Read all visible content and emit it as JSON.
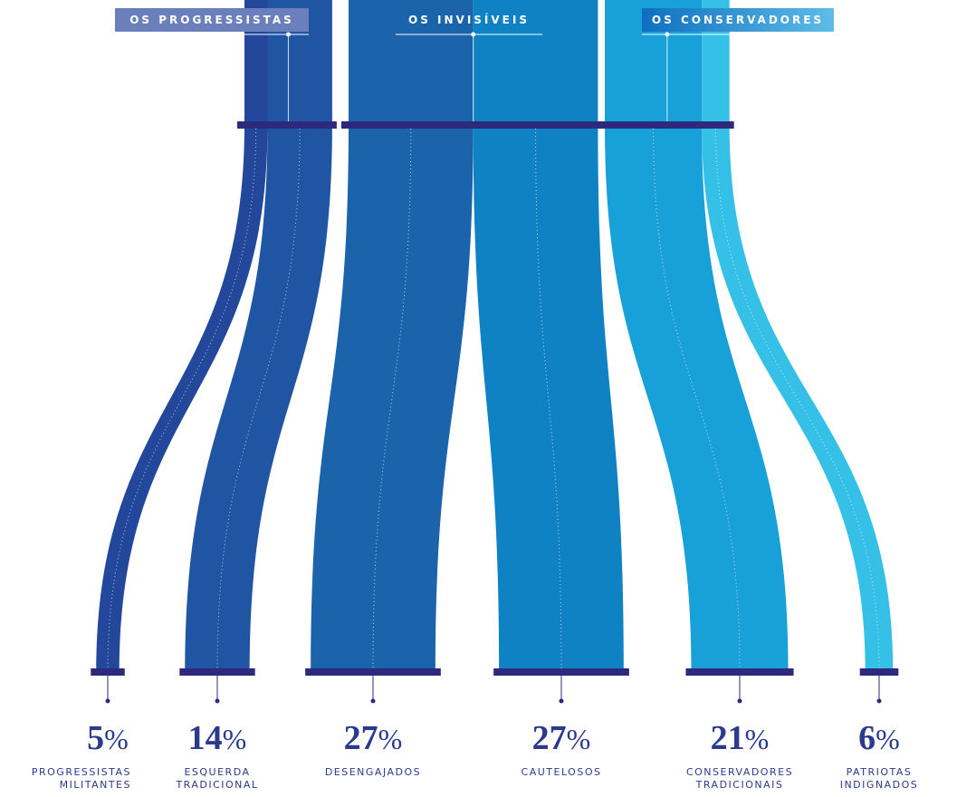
{
  "chart_data": {
    "type": "sankey",
    "unit": "%",
    "groups": [
      {
        "name": "OS PROGRESSISTAS",
        "categories": [
          "PROGRESSISTAS\nMILITANTES",
          "ESQUERDA\nTRADICIONAL"
        ],
        "values": [
          5,
          14
        ],
        "colors": [
          "#23479a",
          "#1f55a3"
        ]
      },
      {
        "name": "OS INVISÍVEIS",
        "categories": [
          "DESENGAJADOS",
          "CAUTELOSOS"
        ],
        "values": [
          27,
          27
        ],
        "colors": [
          "#1b64ac",
          "#0f82c4"
        ]
      },
      {
        "name": "OS CONSERVADORES",
        "categories": [
          "CONSERVADORES\nTRADICIONAIS",
          "PATRIOTAS\nINDIGNADOS"
        ],
        "values": [
          21,
          6
        ],
        "colors": [
          "#18a0d8",
          "#35c0e8"
        ]
      }
    ]
  }
}
